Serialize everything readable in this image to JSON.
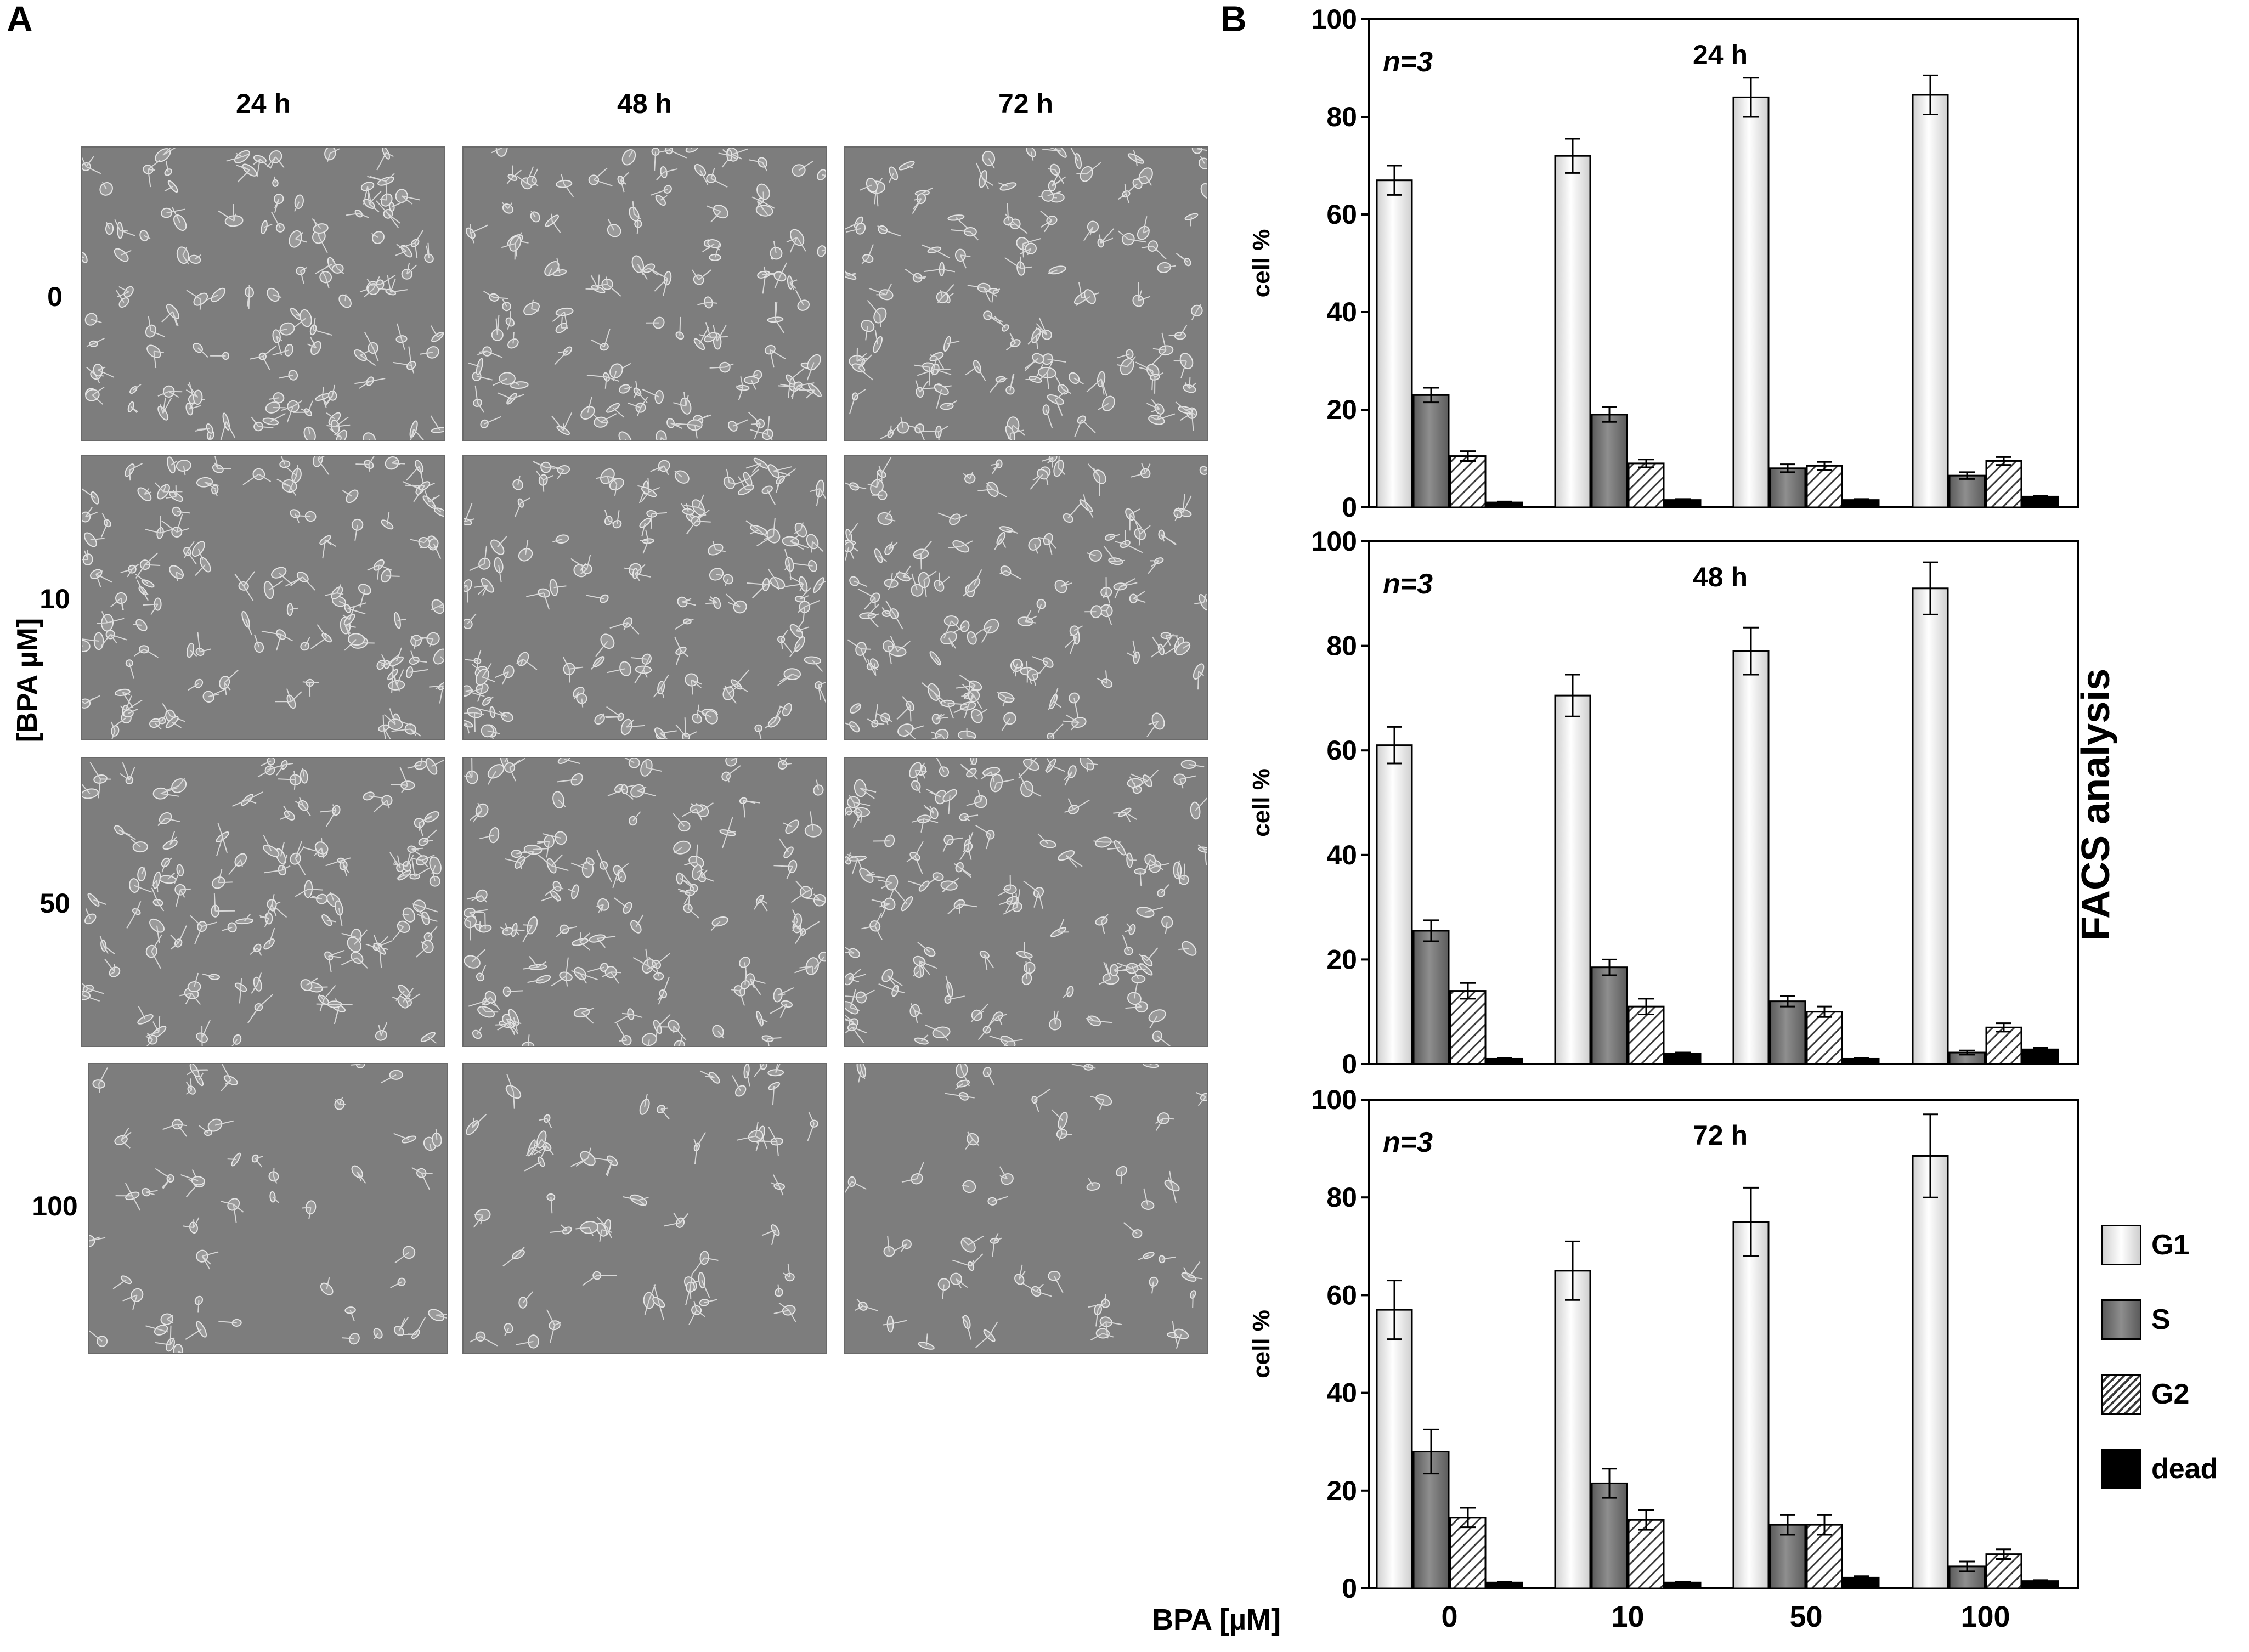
{
  "panel_a": {
    "letter": "A",
    "columns": [
      "24 h",
      "48 h",
      "72 h"
    ],
    "rows": [
      "0",
      "10",
      "50",
      "100"
    ],
    "axis_label": "[BPA µM]"
  },
  "panel_b": {
    "letter": "B",
    "side_label": "FACS analysis",
    "x_axis_title": "BPA [µM]"
  },
  "colors": {
    "G1": "#f4f4f4",
    "S": "#7b7b7b",
    "G2": "hatched",
    "dead": "#000000",
    "micrograph_bg": "#7d7d7d"
  },
  "chart_data": [
    {
      "type": "bar",
      "annotation": "n=3",
      "title": "24 h",
      "ylabel": "cell %",
      "ylim": [
        0,
        100
      ],
      "yticks": [
        "0",
        "20",
        "40",
        "60",
        "80",
        "100"
      ],
      "categories": [
        "0",
        "10",
        "50",
        "100"
      ],
      "series": [
        {
          "name": "G1",
          "values": [
            67,
            72,
            84,
            84.5
          ],
          "errors": [
            3,
            3.5,
            4,
            4
          ]
        },
        {
          "name": "S",
          "values": [
            23,
            19,
            8,
            6.5
          ],
          "errors": [
            1.5,
            1.5,
            0.8,
            0.7
          ]
        },
        {
          "name": "G2",
          "values": [
            10.5,
            9,
            8.5,
            9.5
          ],
          "errors": [
            1,
            0.8,
            0.8,
            0.8
          ]
        },
        {
          "name": "dead",
          "values": [
            1,
            1.5,
            1.5,
            2.2
          ],
          "errors": [
            0.2,
            0.2,
            0.2,
            0.2
          ]
        }
      ]
    },
    {
      "type": "bar",
      "annotation": "n=3",
      "title": "48 h",
      "ylabel": "cell %",
      "ylim": [
        0,
        100
      ],
      "yticks": [
        "0",
        "20",
        "40",
        "60",
        "80",
        "100"
      ],
      "categories": [
        "0",
        "10",
        "50",
        "100"
      ],
      "series": [
        {
          "name": "G1",
          "values": [
            61,
            70.5,
            79,
            91
          ],
          "errors": [
            3.5,
            4,
            4.5,
            5
          ]
        },
        {
          "name": "S",
          "values": [
            25.5,
            18.5,
            12,
            2.2
          ],
          "errors": [
            2,
            1.5,
            1,
            0.4
          ]
        },
        {
          "name": "G2",
          "values": [
            14,
            11,
            10,
            7
          ],
          "errors": [
            1.5,
            1.5,
            1,
            0.8
          ]
        },
        {
          "name": "dead",
          "values": [
            1,
            2,
            1,
            2.8
          ],
          "errors": [
            0.2,
            0.2,
            0.2,
            0.3
          ]
        }
      ]
    },
    {
      "type": "bar",
      "annotation": "n=3",
      "title": "72 h",
      "ylabel": "cell %",
      "ylim": [
        0,
        100
      ],
      "yticks": [
        "0",
        "20",
        "40",
        "60",
        "80",
        "100"
      ],
      "categories": [
        "0",
        "10",
        "50",
        "100"
      ],
      "series": [
        {
          "name": "G1",
          "values": [
            57,
            65,
            75,
            88.5
          ],
          "errors": [
            6,
            6,
            7,
            8.5
          ]
        },
        {
          "name": "S",
          "values": [
            28,
            21.5,
            13,
            4.5
          ],
          "errors": [
            4.5,
            3,
            2,
            1
          ]
        },
        {
          "name": "G2",
          "values": [
            14.5,
            14,
            13,
            7
          ],
          "errors": [
            2,
            2,
            2,
            1
          ]
        },
        {
          "name": "dead",
          "values": [
            1.2,
            1.2,
            2.2,
            1.5
          ],
          "errors": [
            0.2,
            0.2,
            0.3,
            0.2
          ]
        }
      ]
    }
  ],
  "legend": [
    "G1",
    "S",
    "G2",
    "dead"
  ]
}
